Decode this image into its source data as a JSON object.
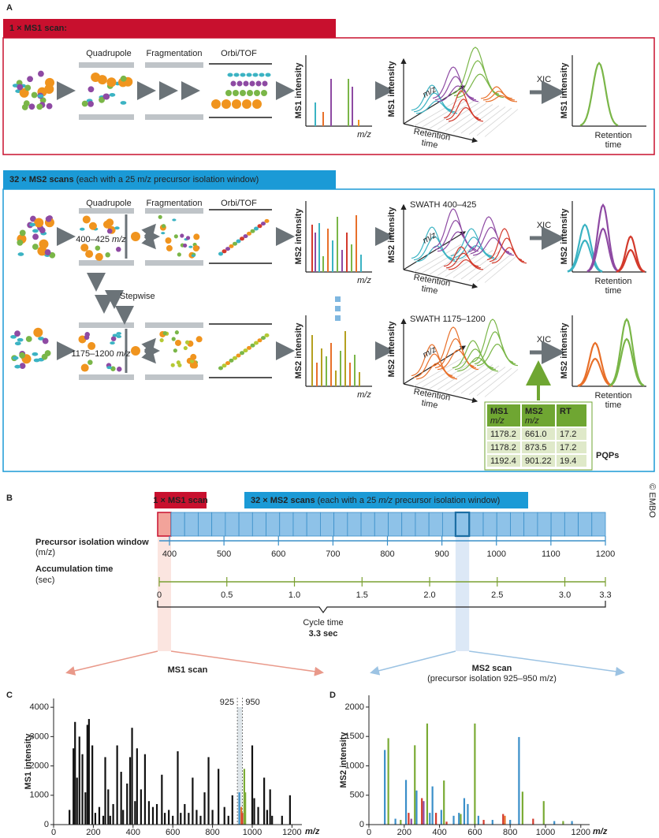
{
  "panel_a": {
    "label": "A",
    "ms1_header": "1 × MS1 scan:",
    "ms2_header": {
      "bold": "32 × MS2 scans",
      "rest": "(each with a 25 m/z precursor isolation window)"
    },
    "stage_labels": [
      "Quadrupole",
      "Fragmentation",
      "Orbi/TOF"
    ],
    "row1": {
      "spectrum_ylabel": "MS1 intensity",
      "spectrum_xlabel": "m/z",
      "map_ylabel": "MS1 intensity",
      "map_mz": "m/z",
      "map_rt": [
        "Retention",
        "time"
      ],
      "xic": "XIC",
      "xic_ylabel": "MS1 intensity",
      "xic_xlabel": [
        "Retention",
        "time"
      ]
    },
    "row2": {
      "window": {
        "range": "400–425",
        "unit": "m/z"
      },
      "spectrum_ylabel": "MS2 intensity",
      "spectrum_xlabel": "m/z",
      "map_ylabel": "MS2 intensity",
      "map_title": "SWATH 400–425",
      "map_mz": "m/z",
      "map_rt": [
        "Retention",
        "time"
      ],
      "xic": "XIC",
      "xic_ylabel": "MS2 intensity",
      "xic_xlabel": [
        "Retention",
        "time"
      ]
    },
    "stepwise": "Stepwise",
    "row3": {
      "window": {
        "range": "1175–1200",
        "unit": "m/z"
      },
      "spectrum_ylabel": "MS2 intensity",
      "spectrum_xlabel": "m/z",
      "map_ylabel": "MS2 intensity",
      "map_title": "SWATH 1175–1200",
      "map_mz": "m/z",
      "map_rt": [
        "Retention",
        "time"
      ],
      "xic": "XIC",
      "xic_ylabel": "MS2 intensity",
      "xic_xlabel": [
        "Retention",
        "time"
      ]
    },
    "pqp_table": {
      "columns": [
        {
          "title": "MS1",
          "unit": "m/z"
        },
        {
          "title": "MS2",
          "unit": "m/z"
        },
        {
          "title": "RT"
        }
      ],
      "rows": [
        [
          "1178.2",
          "661.0",
          "17.2"
        ],
        [
          "1178.2",
          "873.5",
          "17.2"
        ],
        [
          "1192.4",
          "901.22",
          "19.4"
        ]
      ],
      "caption": "PQPs"
    }
  },
  "copyright": "© EMBO",
  "panel_b": {
    "label": "B",
    "ms1_header": "1 × MS1 scan",
    "ms2_header": {
      "bold": "32 × MS2 scans",
      "pre": "(each with a 25",
      "unit": "m/z",
      "post": "precursor isolation window)"
    },
    "precursor": {
      "label": "Precursor isolation window",
      "unit": "(m/z)",
      "xlim": [
        400,
        1200
      ],
      "xticks": [
        400,
        500,
        600,
        700,
        800,
        900,
        1000,
        1100,
        1200
      ]
    },
    "accumulation": {
      "label": "Accumulation time",
      "unit": "(sec)",
      "xlim": [
        0,
        3.3
      ],
      "xticks": [
        0,
        0.5,
        {
          "value": 1,
          "label": "1.0"
        },
        1.5,
        {
          "value": 2,
          "label": "2.0"
        },
        2.5,
        {
          "value": 3,
          "label": "3.0"
        },
        3.3
      ]
    },
    "cycle": {
      "label": "Cycle time",
      "value": "3.3 sec"
    },
    "ms1_scan": "MS1 scan",
    "ms2_scan": "MS2 scan",
    "ms2_scan_note": "(precursor isolation 925–950 m/z)"
  },
  "chart_data": [
    {
      "type": "bar",
      "label": "C",
      "ylabel": "MS1 intensity",
      "xlabel": "m/z",
      "xlim": [
        0,
        1250
      ],
      "xticks": [
        0,
        200,
        400,
        600,
        800,
        1000,
        1200
      ],
      "ylim": [
        0,
        4300
      ],
      "yticks": [
        0,
        1000,
        2000,
        3000,
        4000
      ],
      "annotations": [
        925,
        950
      ],
      "x": [
        80,
        100,
        108,
        118,
        130,
        145,
        160,
        170,
        178,
        195,
        210,
        230,
        250,
        260,
        275,
        285,
        300,
        320,
        340,
        350,
        370,
        385,
        395,
        410,
        420,
        440,
        460,
        480,
        500,
        520,
        545,
        560,
        580,
        600,
        625,
        640,
        660,
        680,
        700,
        720,
        740,
        760,
        780,
        800,
        830,
        860,
        880,
        900,
        935,
        945,
        950,
        960,
        965,
        1000,
        1010,
        1030,
        1060,
        1075,
        1090,
        1100,
        1150,
        1190
      ],
      "values": [
        500,
        2600,
        3500,
        1600,
        3000,
        2400,
        1100,
        3400,
        3600,
        2700,
        400,
        600,
        300,
        2300,
        1200,
        300,
        700,
        2700,
        1800,
        500,
        1400,
        2300,
        3300,
        800,
        2600,
        1200,
        2400,
        800,
        600,
        700,
        1700,
        400,
        500,
        300,
        2500,
        400,
        700,
        400,
        1600,
        500,
        300,
        1100,
        2300,
        500,
        1900,
        600,
        300,
        1000,
        1100,
        600,
        400,
        1900,
        1100,
        2700,
        900,
        600,
        1600,
        500,
        1200,
        300,
        300,
        1000
      ],
      "colors": [
        "#111",
        "#111",
        "#111",
        "#111",
        "#111",
        "#111",
        "#111",
        "#111",
        "#111",
        "#111",
        "#111",
        "#111",
        "#111",
        "#111",
        "#111",
        "#111",
        "#111",
        "#111",
        "#111",
        "#111",
        "#111",
        "#111",
        "#111",
        "#111",
        "#111",
        "#111",
        "#111",
        "#111",
        "#111",
        "#111",
        "#111",
        "#111",
        "#111",
        "#111",
        "#111",
        "#111",
        "#111",
        "#111",
        "#111",
        "#111",
        "#111",
        "#111",
        "#111",
        "#111",
        "#111",
        "#111",
        "#111",
        "#111",
        "#3a8fc9",
        "#e8702a",
        "#d33a2c",
        "#7aab35",
        "#7aab35",
        "#111",
        "#111",
        "#111",
        "#111",
        "#111",
        "#111",
        "#111",
        "#111",
        "#111"
      ]
    },
    {
      "type": "bar",
      "label": "D",
      "ylabel": "MS2 intensity",
      "xlabel": "m/z",
      "xlim": [
        0,
        1250
      ],
      "xticks": [
        0,
        200,
        400,
        600,
        800,
        1000,
        1200
      ],
      "ylim": [
        0,
        2200
      ],
      "yticks": [
        0,
        500,
        1000,
        1500,
        2000
      ],
      "x": [
        90,
        110,
        150,
        180,
        210,
        225,
        240,
        260,
        270,
        300,
        310,
        330,
        345,
        360,
        380,
        410,
        425,
        440,
        480,
        510,
        520,
        540,
        560,
        600,
        620,
        650,
        700,
        760,
        770,
        800,
        850,
        870,
        930,
        990,
        1050,
        1100,
        1150
      ],
      "values": [
        1270,
        1470,
        100,
        80,
        760,
        200,
        100,
        1350,
        580,
        450,
        400,
        1720,
        200,
        650,
        200,
        250,
        750,
        50,
        150,
        200,
        180,
        450,
        350,
        1720,
        150,
        80,
        80,
        180,
        150,
        80,
        1490,
        560,
        100,
        400,
        60,
        60,
        60
      ],
      "colors": [
        "#3a8fc9",
        "#7aab35",
        "#3a8fc9",
        "#7aab35",
        "#3a8fc9",
        "#d33a2c",
        "#8e4aa3",
        "#7aab35",
        "#3a8fc9",
        "#d33a2c",
        "#8e4aa3",
        "#7aab35",
        "#3a8fc9",
        "#3a8fc9",
        "#d33a2c",
        "#3a8fc9",
        "#7aab35",
        "#d33a2c",
        "#3a8fc9",
        "#3a8fc9",
        "#7aab35",
        "#3a8fc9",
        "#3a8fc9",
        "#7aab35",
        "#3a8fc9",
        "#d33a2c",
        "#3a8fc9",
        "#d33a2c",
        "#e8702a",
        "#3a8fc9",
        "#3a8fc9",
        "#7aab35",
        "#d33a2c",
        "#7aab35",
        "#3a8fc9",
        "#7aab35",
        "#3a8fc9"
      ]
    }
  ]
}
